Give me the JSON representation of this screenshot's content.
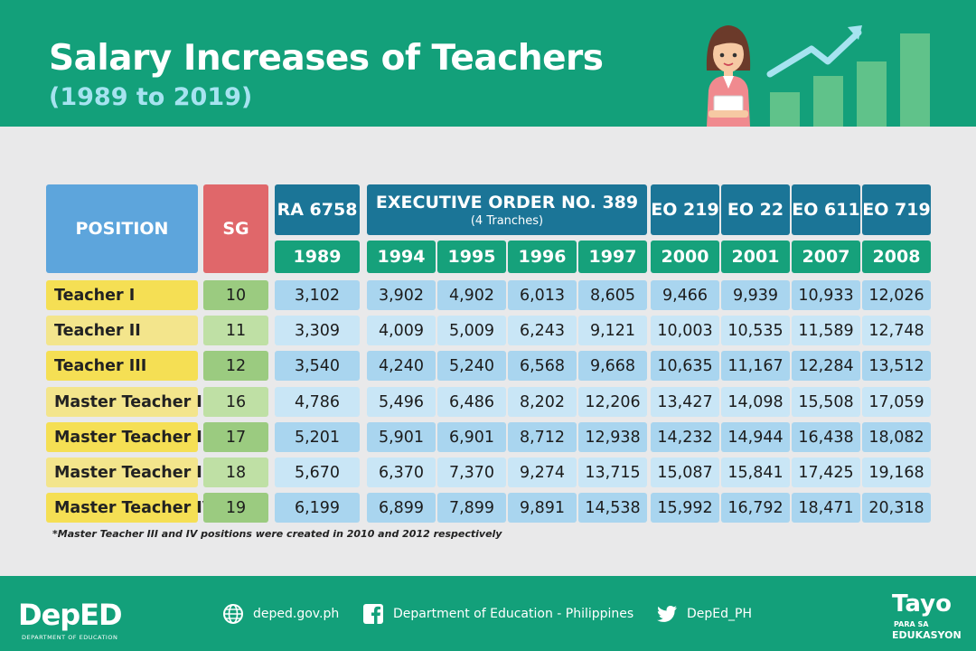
{
  "header": {
    "title": "Salary Increases of Teachers",
    "subtitle": "(1989 to 2019)"
  },
  "table": {
    "position_header": "POSITION",
    "sg_header": "SG",
    "groups": [
      {
        "label": "RA 6758",
        "sublabel": ""
      },
      {
        "label": "EXECUTIVE ORDER NO. 389",
        "sublabel": "(4 Tranches)"
      },
      {
        "label": "EO 219",
        "sublabel": ""
      },
      {
        "label": "EO 22",
        "sublabel": ""
      },
      {
        "label": "EO 611",
        "sublabel": ""
      },
      {
        "label": "EO 719",
        "sublabel": ""
      }
    ],
    "years": [
      "1989",
      "1994",
      "1995",
      "1996",
      "1997",
      "2000",
      "2001",
      "2007",
      "2008"
    ],
    "rows": [
      {
        "position": "Teacher I",
        "sg": "10",
        "values": [
          "3,102",
          "3,902",
          "4,902",
          "6,013",
          "8,605",
          "9,466",
          "9,939",
          "10,933",
          "12,026"
        ]
      },
      {
        "position": "Teacher II",
        "sg": "11",
        "values": [
          "3,309",
          "4,009",
          "5,009",
          "6,243",
          "9,121",
          "10,003",
          "10,535",
          "11,589",
          "12,748"
        ]
      },
      {
        "position": "Teacher III",
        "sg": "12",
        "values": [
          "3,540",
          "4,240",
          "5,240",
          "6,568",
          "9,668",
          "10,635",
          "11,167",
          "12,284",
          "13,512"
        ]
      },
      {
        "position": "Master Teacher I",
        "sg": "16",
        "values": [
          "4,786",
          "5,496",
          "6,486",
          "8,202",
          "12,206",
          "13,427",
          "14,098",
          "15,508",
          "17,059"
        ]
      },
      {
        "position": "Master Teacher II",
        "sg": "17",
        "values": [
          "5,201",
          "5,901",
          "6,901",
          "8,712",
          "12,938",
          "14,232",
          "14,944",
          "16,438",
          "18,082"
        ]
      },
      {
        "position": "Master Teacher III",
        "sg": "18",
        "values": [
          "5,670",
          "6,370",
          "7,370",
          "9,274",
          "13,715",
          "15,087",
          "15,841",
          "17,425",
          "19,168"
        ]
      },
      {
        "position": "Master Teacher IV",
        "sg": "19",
        "values": [
          "6,199",
          "6,899",
          "7,899",
          "9,891",
          "14,538",
          "15,992",
          "16,792",
          "18,471",
          "20,318"
        ]
      }
    ]
  },
  "footnote": "*Master Teacher III and IV positions were created in 2010 and 2012 respectively",
  "footer": {
    "logo_text": "DepED",
    "logo_subtext": "DEPARTMENT OF EDUCATION",
    "website": "deped.gov.ph",
    "facebook": "Department of Education - Philippines",
    "twitter": "DepEd_PH",
    "tayo_text": "Tayo",
    "tayo_sub1": "PARA SA",
    "tayo_sub2": "EDUKASYON",
    "icons": [
      "globe-icon",
      "facebook-icon",
      "twitter-icon"
    ]
  },
  "colors": {
    "brand_green": "#13a07a",
    "position_header": "#5da5dc",
    "sg_header": "#e0676a",
    "group_header": "#1b7597",
    "year_header": "#16a17b",
    "position_cell_a": "#f5df54",
    "position_cell_b": "#f3e58c",
    "sg_cell_a": "#9bcb80",
    "sg_cell_b": "#bfe0a5",
    "value_cell_a": "#a9d5ef",
    "value_cell_b": "#c9e6f6"
  }
}
